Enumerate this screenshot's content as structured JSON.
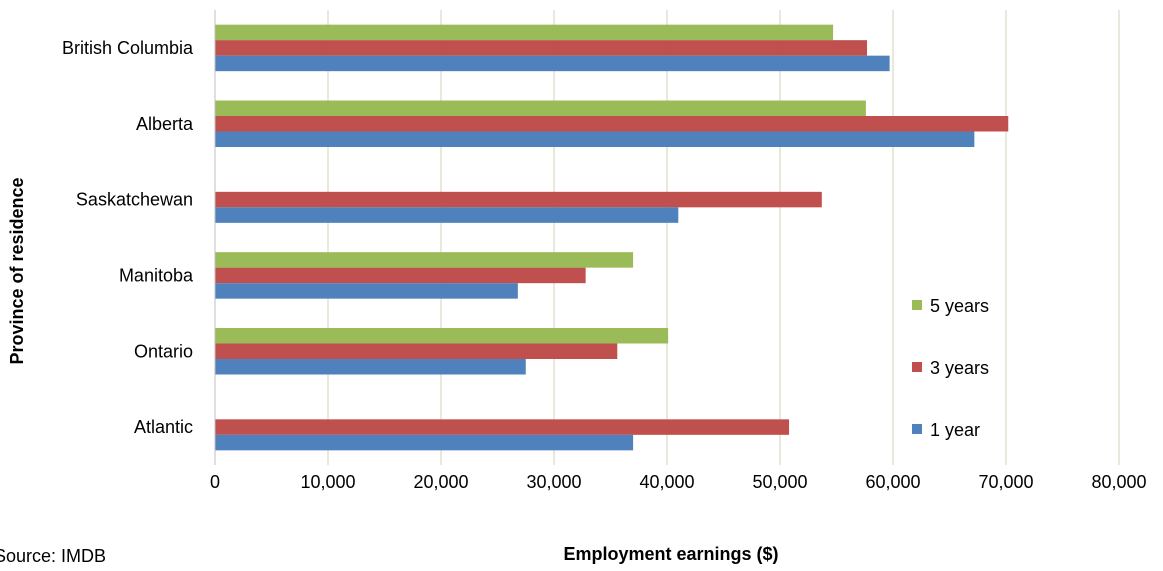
{
  "chart_data": {
    "type": "bar",
    "orientation": "horizontal",
    "categories": [
      "British Columbia",
      "Alberta",
      "Saskatchewan",
      "Manitoba",
      "Ontario",
      "Atlantic"
    ],
    "series": [
      {
        "name": "5 years",
        "color": "#9BBB59",
        "values": [
          54700,
          57600,
          null,
          37000,
          40100,
          null
        ]
      },
      {
        "name": "3 years",
        "color": "#C0504D",
        "values": [
          57700,
          70200,
          53700,
          32800,
          35600,
          50800
        ]
      },
      {
        "name": "1 year",
        "color": "#4F81BD",
        "values": [
          59700,
          67200,
          41000,
          26800,
          27500,
          37000
        ]
      }
    ],
    "xlabel": "Employment earnings ($)",
    "ylabel": "Province of residence",
    "xlim": [
      0,
      80000
    ],
    "xticks": [
      "0",
      "10,000",
      "20,000",
      "30,000",
      "40,000",
      "50,000",
      "60,000",
      "70,000",
      "80,000"
    ],
    "grid": "vertical",
    "legend_position": "right"
  },
  "source_note": "Source: IMDB"
}
